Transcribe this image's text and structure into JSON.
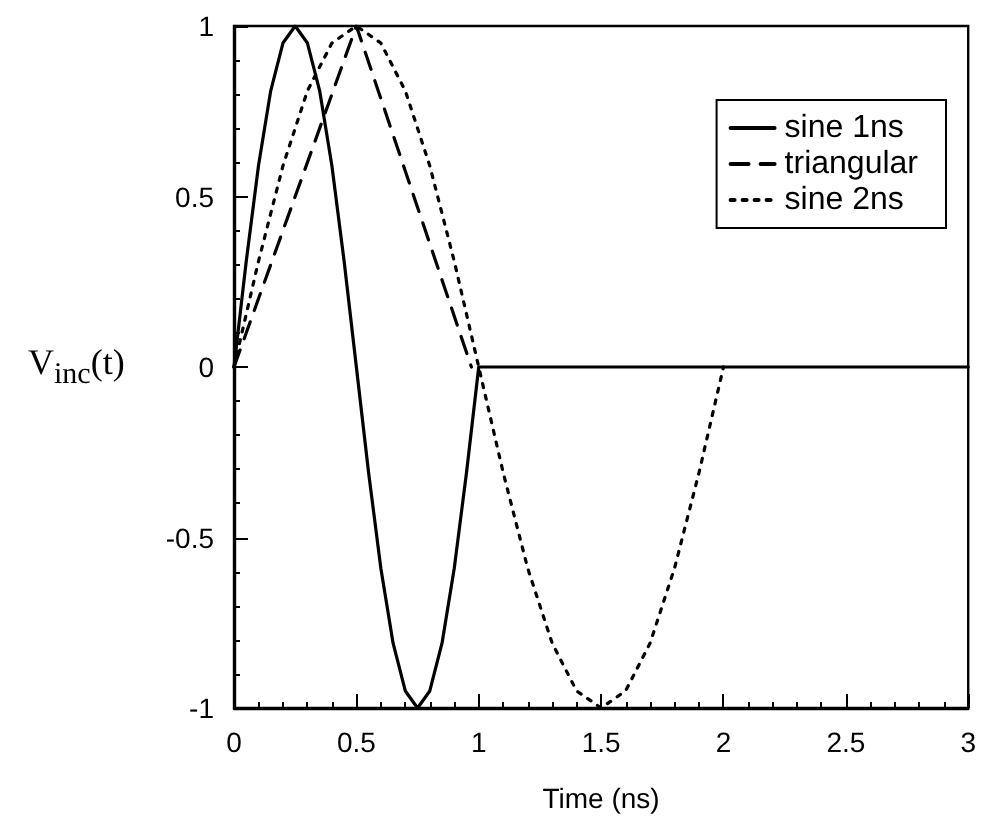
{
  "chart_data": {
    "type": "line",
    "xlabel": "Time (ns)",
    "ylabel": "V$_{inc}$(t)",
    "xlim": [
      0,
      3
    ],
    "xticks": [
      0,
      0.5,
      1,
      1.5,
      2,
      2.5,
      3
    ],
    "ylim": [
      -1,
      1
    ],
    "yticks": [
      -1,
      -0.5,
      0,
      0.5,
      1
    ],
    "grid": false,
    "legend": "top right",
    "marker": "none",
    "series": [
      {
        "name": "sine 1ns",
        "color": "#000000",
        "line_style": "solid",
        "x": [
          0,
          0.05,
          0.1,
          0.15,
          0.2,
          0.25,
          0.3,
          0.35,
          0.4,
          0.45,
          0.5,
          0.55,
          0.6,
          0.65,
          0.7,
          0.75,
          0.8,
          0.85,
          0.9,
          0.95,
          1,
          3
        ],
        "values": [
          0,
          0.31,
          0.59,
          0.81,
          0.95,
          1,
          0.95,
          0.81,
          0.59,
          0.31,
          0,
          -0.31,
          -0.59,
          -0.81,
          -0.95,
          -1,
          -0.95,
          -0.81,
          -0.59,
          -0.31,
          0,
          0
        ]
      },
      {
        "name": "triangular",
        "color": "#000000",
        "line_style": "dashed",
        "x": [
          0,
          0.5,
          0.97
        ],
        "values": [
          0,
          1,
          0
        ]
      },
      {
        "name": "sine 2ns",
        "color": "#000000",
        "line_style": "dotted",
        "x": [
          0,
          0.1,
          0.2,
          0.3,
          0.4,
          0.5,
          0.6,
          0.7,
          0.8,
          0.9,
          1,
          1.1,
          1.2,
          1.3,
          1.4,
          1.5,
          1.6,
          1.7,
          1.8,
          1.9,
          2
        ],
        "values": [
          0,
          0.31,
          0.59,
          0.81,
          0.95,
          1,
          0.95,
          0.81,
          0.59,
          0.31,
          0,
          -0.31,
          -0.59,
          -0.81,
          -0.95,
          -1,
          -0.95,
          -0.81,
          -0.59,
          -0.31,
          0
        ]
      }
    ]
  }
}
